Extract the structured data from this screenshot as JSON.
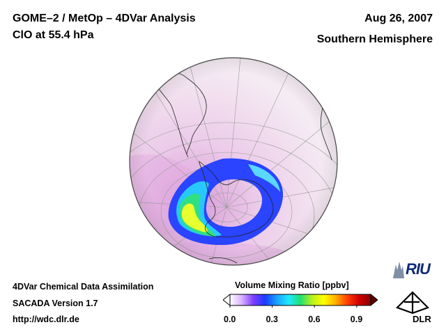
{
  "header": {
    "title": "GOME–2 / MetOp – 4DVar Analysis",
    "species": "ClO at 55.4 hPa",
    "date": "Aug 26, 2007",
    "hemisphere": "Southern Hemisphere"
  },
  "footer": {
    "line1": "4DVar Chemical Data Assimilation",
    "line2": "SACADA Version 1.7",
    "line3": "http://wdc.dlr.de"
  },
  "colorbar": {
    "title": "Volume Mixing Ratio [ppbv]",
    "ticks": [
      "0.0",
      "0.3",
      "0.6",
      "0.9"
    ],
    "tick_values": [
      0.0,
      0.3,
      0.6,
      0.9
    ],
    "range": [
      0.0,
      1.0
    ],
    "stops": [
      "#ffffff",
      "#d9b3ff",
      "#7b3cff",
      "#1a3cff",
      "#1aa3ff",
      "#20e8ff",
      "#20e070",
      "#b8f020",
      "#ffff00",
      "#ffb000",
      "#ff4000",
      "#d00000",
      "#8a0000"
    ]
  },
  "logos": {
    "riu": "RIU",
    "dlr": "DLR"
  },
  "map": {
    "projection": "orthographic",
    "field": "ClO",
    "colors": {
      "background": "#f3e6f0",
      "haze": "#e6b4e6",
      "vortex_outer": "#2848ff",
      "vortex_mid": "#26c8ff",
      "hotspot": "#e8ff30",
      "core": "#f7f4f8"
    }
  }
}
